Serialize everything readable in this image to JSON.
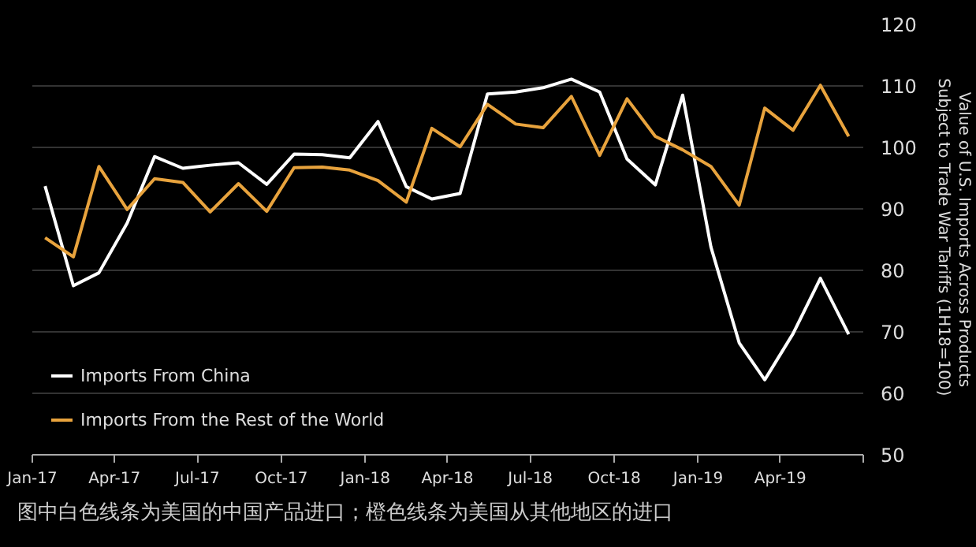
{
  "chart_data": {
    "type": "line",
    "ylabel": "Value of U.S. Imports Across Products\nSubject to Trade War Tariffs  (1H18=100)",
    "annotations": [
      "图中白色线条为美国的中国产品进口；橙色线条为美国从其他地区的进口"
    ],
    "x": [
      "2017-01-15",
      "2017-02-15",
      "2017-03-15",
      "2017-04-15",
      "2017-05-15",
      "2017-06-15",
      "2017-07-15",
      "2017-08-15",
      "2017-09-15",
      "2017-10-15",
      "2017-11-15",
      "2017-12-15",
      "2018-01-15",
      "2018-02-15",
      "2018-03-15",
      "2018-04-15",
      "2018-05-15",
      "2018-06-15",
      "2018-07-15",
      "2018-08-15",
      "2018-09-15",
      "2018-10-15",
      "2018-11-15",
      "2018-12-15",
      "2019-01-15",
      "2019-02-15",
      "2019-03-15",
      "2019-04-15",
      "2019-05-15",
      "2019-06-15"
    ],
    "series": [
      {
        "name": "Imports From China",
        "color": "#ffffff",
        "values": [
          93.7,
          77.5,
          79.6,
          87.7,
          98.5,
          96.6,
          97.1,
          97.5,
          94.0,
          98.9,
          98.8,
          98.3,
          104.2,
          93.6,
          91.6,
          92.5,
          108.7,
          109.0,
          109.7,
          111.1,
          109.0,
          98.1,
          93.9,
          108.5,
          83.8,
          68.2,
          62.2,
          69.7,
          78.7,
          69.6
        ]
      },
      {
        "name": "Imports From the Rest of the World",
        "color": "#e8a33d",
        "values": [
          85.3,
          82.2,
          96.9,
          89.9,
          94.9,
          94.3,
          89.5,
          94.1,
          89.6,
          96.7,
          96.8,
          96.3,
          94.6,
          91.1,
          103.1,
          100.1,
          107.0,
          103.8,
          103.2,
          108.3,
          98.7,
          107.9,
          101.8,
          99.6,
          96.9,
          90.6,
          106.4,
          102.8,
          110.1,
          101.8
        ]
      }
    ],
    "xlim": [
      "2017-01-01",
      "2019-07-01"
    ],
    "xticks": [
      {
        "value": "2017-01-01",
        "label": "Jan-17"
      },
      {
        "value": "2017-04-01",
        "label": "Apr-17"
      },
      {
        "value": "2017-07-01",
        "label": "Jul-17"
      },
      {
        "value": "2017-10-01",
        "label": "Oct-17"
      },
      {
        "value": "2018-01-01",
        "label": "Jan-18"
      },
      {
        "value": "2018-04-01",
        "label": "Apr-18"
      },
      {
        "value": "2018-07-01",
        "label": "Jul-18"
      },
      {
        "value": "2018-10-01",
        "label": "Oct-18"
      },
      {
        "value": "2019-01-01",
        "label": "Jan-19"
      },
      {
        "value": "2019-04-01",
        "label": "Apr-19"
      },
      {
        "value": "2019-07-01",
        "label": null
      }
    ],
    "ylim": [
      50,
      120
    ],
    "yticks": [
      50,
      60,
      70,
      80,
      90,
      100,
      110,
      120
    ],
    "grid": "y",
    "legend": "bottom left",
    "marker": "none",
    "line_style": "solid"
  }
}
